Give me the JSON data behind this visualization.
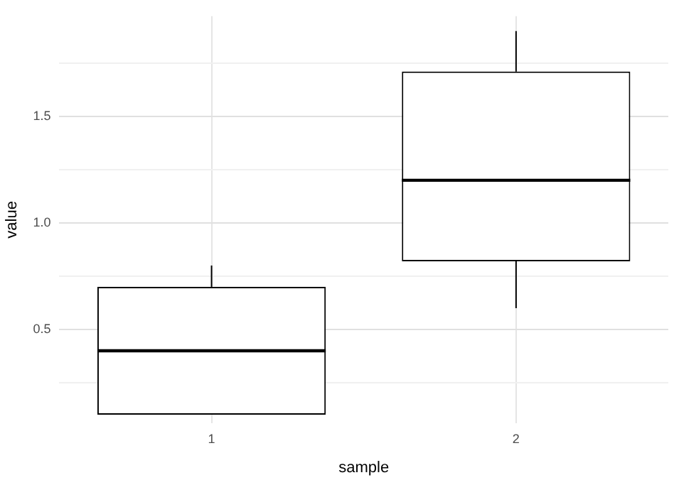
{
  "chart_data": {
    "type": "box",
    "xlabel": "sample",
    "ylabel": "value",
    "categories": [
      "1",
      "2"
    ],
    "boxes": [
      {
        "low": 0.1,
        "q1": 0.1,
        "median": 0.4,
        "q3": 0.7,
        "high": 0.8
      },
      {
        "low": 0.6,
        "q1": 0.82,
        "median": 1.2,
        "q3": 1.71,
        "high": 1.9
      }
    ],
    "color": "#000000",
    "ylim": [
      0.06,
      1.97
    ],
    "yticks": [
      {
        "value": 0.25,
        "label": null
      },
      0.5,
      {
        "value": 0.75,
        "label": null
      },
      {
        "value": 1,
        "label": "1.0"
      },
      {
        "value": 1.25,
        "label": null
      },
      1.5,
      {
        "value": 1.75,
        "label": null
      }
    ],
    "grid": true,
    "legend": false
  }
}
